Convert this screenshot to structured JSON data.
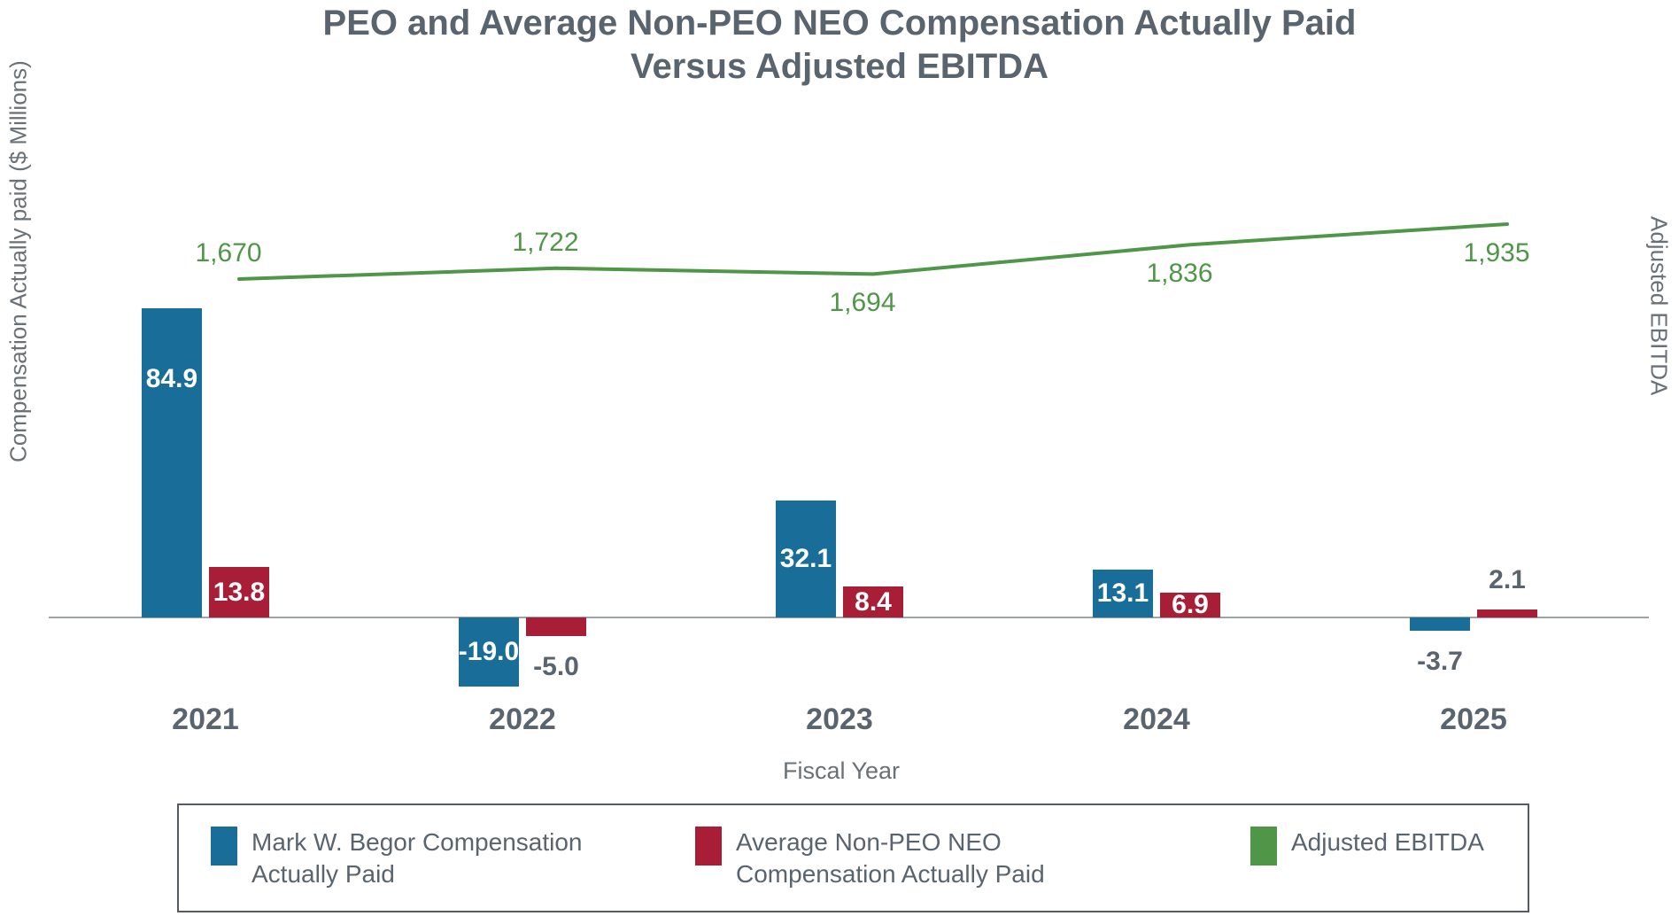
{
  "chart_data": {
    "type": "combo",
    "title": "PEO and Average Non-PEO NEO Compensation Actually Paid Versus Adjusted EBITDA",
    "title_lines": [
      "PEO and Average Non-PEO NEO Compensation Actually Paid",
      "Versus Adjusted EBITDA"
    ],
    "categories": [
      "2021",
      "2022",
      "2023",
      "2024",
      "2025"
    ],
    "series": [
      {
        "name": "Mark W. Begor Compensation Actually Paid",
        "type": "bar",
        "color": "#186E99",
        "values": [
          84.9,
          -19.0,
          32.1,
          13.1,
          -3.7
        ],
        "labels": [
          "84.9",
          "-19.0",
          "32.1",
          "13.1",
          "-3.7"
        ]
      },
      {
        "name": "Average Non-PEO NEO Compensation Actually Paid",
        "type": "bar",
        "color": "#A81E36",
        "values": [
          13.8,
          -5.0,
          8.4,
          6.9,
          2.1
        ],
        "labels": [
          "13.8",
          "-5.0",
          "8.4",
          "6.9",
          "2.1"
        ]
      },
      {
        "name": "Adjusted EBITDA",
        "type": "line",
        "axis": "right",
        "color": "#4F9648",
        "values": [
          1670,
          1722,
          1694,
          1836,
          1935
        ],
        "labels": [
          "1,670",
          "1,722",
          "1,694",
          "1,836",
          "1,935"
        ]
      }
    ],
    "xlabel": "Fiscal Year",
    "ylabel_left": "Compensation Actually paid ($ Millions)",
    "ylabel_right": "Adjusted EBITDA",
    "grid": false,
    "axis_ticks_visible": false,
    "legend_position": "bottom"
  },
  "colors": {
    "peo_bar": "#186E99",
    "neo_bar": "#A81E36",
    "ebitda_line": "#4F9648",
    "title_text": "#5A646E",
    "axis_text": "#697076",
    "axis_line": "#9EA3A8",
    "bar_label_inside": "#FFFFFF",
    "bar_label_outside": "#5A646E"
  }
}
